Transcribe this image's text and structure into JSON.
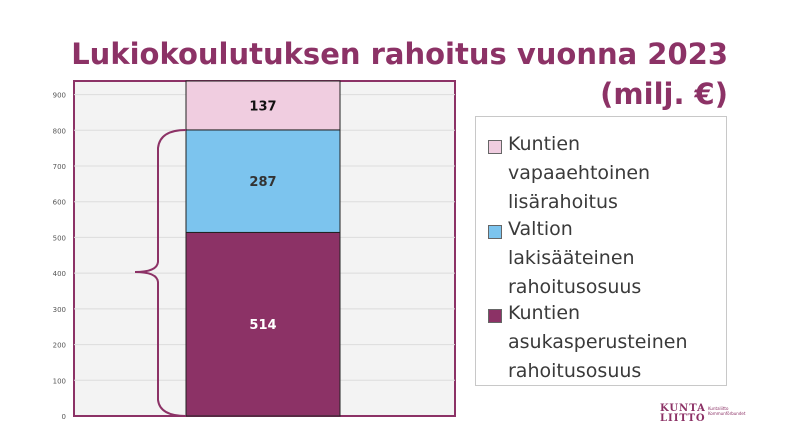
{
  "title_line1": "Lukiokoulutuksen rahoitus vuonna 2023",
  "title_line2": "(milj. €)",
  "chart_data": {
    "type": "bar",
    "stacked": true,
    "categories": [
      ""
    ],
    "series": [
      {
        "name": "Kuntien asukasperusteinen rahoitusosuus",
        "values": [
          514
        ],
        "color": "#8c3266",
        "label_color": "#ffffff"
      },
      {
        "name": "Valtion lakisääteinen rahoitusosuus",
        "values": [
          287
        ],
        "color": "#7cc4ee",
        "label_color": "#333333"
      },
      {
        "name": "Kuntien vapaaehtoinen lisärahoitus",
        "values": [
          137
        ],
        "color": "#f0cde0",
        "label_color": "#111111"
      }
    ],
    "y_ticks": [
      "0",
      "100",
      "200",
      "300",
      "400",
      "500",
      "600",
      "700",
      "800",
      "900"
    ],
    "ylim": [
      0,
      938
    ],
    "grid": true,
    "legend_position": "right"
  },
  "legend": [
    {
      "lines": [
        "Kuntien",
        "vapaaehtoinen",
        "lisärahoitus"
      ],
      "color": "#f0cde0"
    },
    {
      "lines": [
        "Valtion",
        "lakisääteinen",
        "rahoitusosuus"
      ],
      "color": "#7cc4ee"
    },
    {
      "lines": [
        "Kuntien",
        "asukasperusteinen",
        "rahoitusosuus"
      ],
      "color": "#8c3266"
    }
  ],
  "logo": {
    "main_line1": "KUNTA",
    "main_line2": "LIITTO",
    "sub_line1": "Kuntaliitto",
    "sub_line2": "Kommunförbundet"
  }
}
